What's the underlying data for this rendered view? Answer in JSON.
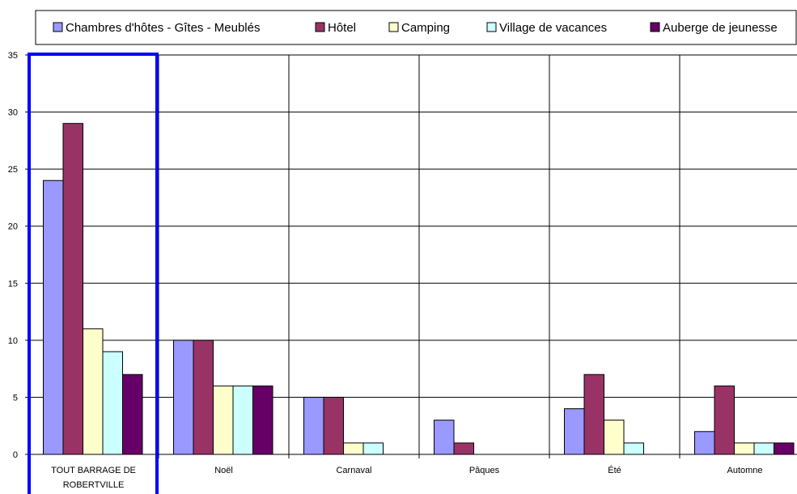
{
  "chart_data": {
    "type": "bar",
    "categories": [
      [
        "TOUT BARRAGE DE",
        "ROBERTVILLE"
      ],
      [
        "Noël"
      ],
      [
        "Carnaval"
      ],
      [
        "Pâques"
      ],
      [
        "Été"
      ],
      [
        "Automne"
      ]
    ],
    "series": [
      {
        "name": "Chambres d'hôtes - Gîtes - Meublés",
        "color": "#9999ff",
        "values": [
          24,
          10,
          5,
          3,
          4,
          2
        ]
      },
      {
        "name": "Hôtel",
        "color": "#993366",
        "values": [
          29,
          10,
          5,
          1,
          7,
          6
        ]
      },
      {
        "name": "Camping",
        "color": "#ffffcc",
        "values": [
          11,
          6,
          1,
          0,
          3,
          1
        ]
      },
      {
        "name": "Village de vacances",
        "color": "#ccffff",
        "values": [
          9,
          6,
          1,
          0,
          1,
          1
        ]
      },
      {
        "name": "Auberge de jeunesse",
        "color": "#660066",
        "values": [
          7,
          6,
          0,
          0,
          0,
          1
        ]
      }
    ],
    "yticks": [
      "0",
      "5",
      "10",
      "15",
      "20",
      "25",
      "30",
      "35"
    ],
    "ylim": [
      0,
      35
    ],
    "grid": true,
    "legend_position": "top",
    "highlight": {
      "category_index": 0,
      "color": "#0000ff"
    }
  }
}
